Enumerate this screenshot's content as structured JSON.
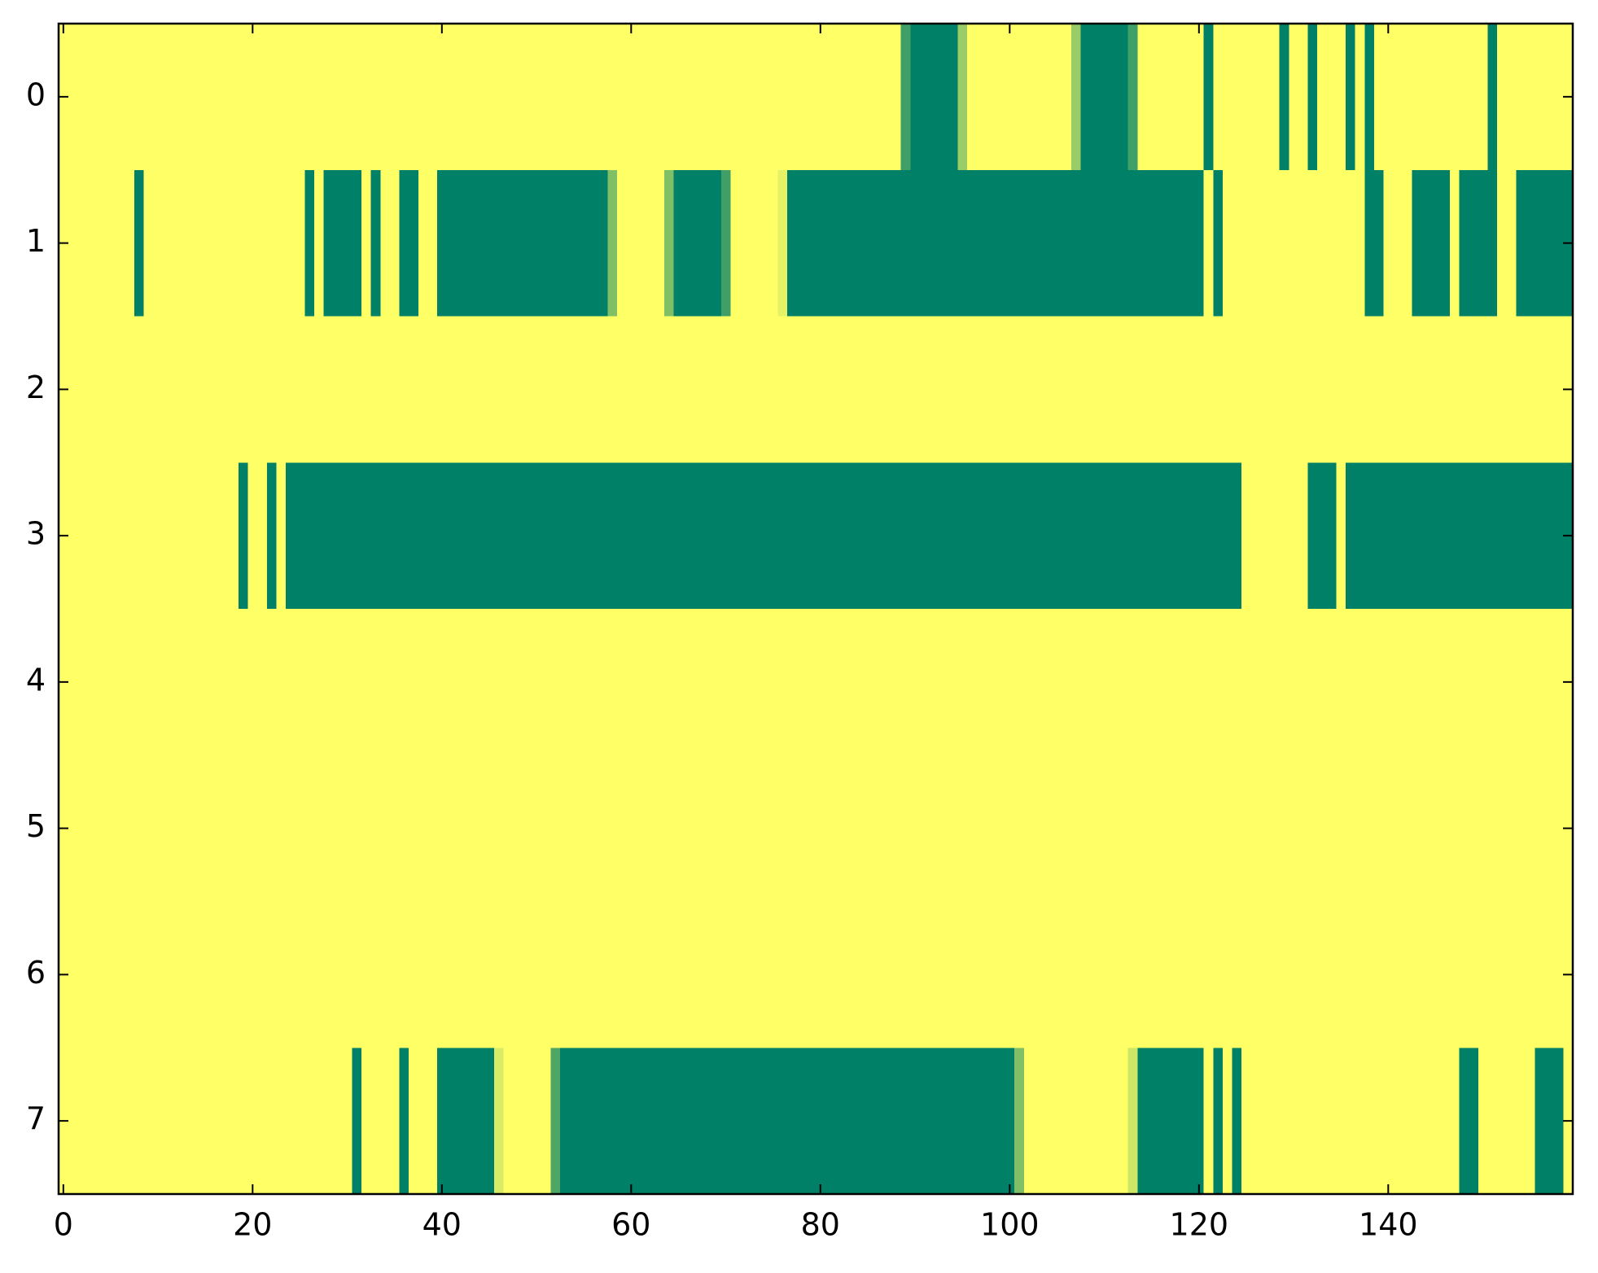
{
  "chart_data": {
    "type": "heatmap",
    "colormap": "summer",
    "clim": [
      0,
      1
    ],
    "xlim": [
      -0.5,
      159.5
    ],
    "ylim": [
      7.5,
      -0.5
    ],
    "xticks": [
      0,
      20,
      40,
      60,
      80,
      100,
      120,
      140
    ],
    "yticks": [
      0,
      1,
      2,
      3,
      4,
      5,
      6,
      7
    ],
    "z": [
      [
        1,
        1,
        1,
        1,
        1,
        1,
        1,
        1,
        1,
        1,
        1,
        1,
        1,
        1,
        1,
        1,
        1,
        1,
        1,
        1,
        1,
        1,
        1,
        1,
        1,
        1,
        1,
        1,
        1,
        1,
        1,
        1,
        1,
        1,
        1,
        1,
        1,
        1,
        1,
        1,
        1,
        1,
        1,
        1,
        1,
        1,
        1,
        1,
        1,
        1,
        1,
        1,
        1,
        1,
        1,
        1,
        1,
        1,
        1,
        1,
        1,
        1,
        1,
        1,
        1,
        1,
        1,
        1,
        1,
        1,
        1,
        1,
        1,
        1,
        1,
        1,
        1,
        1,
        1,
        1,
        1,
        1,
        1,
        1,
        1,
        1,
        1,
        1,
        1,
        0.25,
        0,
        0,
        0,
        0,
        0,
        0.6,
        1,
        1,
        1,
        1,
        1,
        1,
        1,
        1,
        1,
        1,
        1,
        0.6,
        0,
        0,
        0,
        0,
        0,
        0.25,
        1,
        1,
        1,
        1,
        1,
        1,
        1,
        0,
        1,
        1,
        1,
        1,
        1,
        1,
        1,
        0,
        1,
        1,
        0,
        1,
        1,
        1,
        0,
        1,
        0,
        1,
        1,
        1,
        1,
        1,
        1,
        1,
        1,
        1,
        1,
        1,
        1,
        0,
        1,
        1,
        1,
        1,
        1,
        1,
        1,
        1
      ],
      [
        1,
        1,
        1,
        1,
        1,
        1,
        1,
        1,
        0,
        1,
        1,
        1,
        1,
        1,
        1,
        1,
        1,
        1,
        1,
        1,
        1,
        1,
        1,
        1,
        1,
        1,
        0,
        1,
        0,
        0,
        0,
        0,
        1,
        0,
        1,
        1,
        0,
        0,
        1,
        1,
        0,
        0,
        0,
        0,
        0,
        0,
        0,
        0,
        0,
        0,
        0,
        0,
        0,
        0,
        0,
        0,
        0,
        0,
        0.5,
        1,
        1,
        1,
        1,
        1,
        0.5,
        0,
        0,
        0,
        0,
        0,
        0.25,
        1,
        1,
        1,
        1,
        1,
        0.9,
        0,
        0,
        0,
        0,
        0,
        0,
        0,
        0,
        0,
        0,
        0,
        0,
        0,
        0,
        0,
        0,
        0,
        0,
        0,
        0,
        0,
        0,
        0,
        0,
        0,
        0,
        0,
        0,
        0,
        0,
        0,
        0,
        0,
        0,
        0,
        0,
        0,
        0,
        0,
        0,
        0,
        0,
        0,
        0,
        1,
        0,
        1,
        1,
        1,
        1,
        1,
        1,
        1,
        1,
        1,
        1,
        1,
        1,
        1,
        1,
        1,
        0,
        0,
        1,
        1,
        1,
        0,
        0,
        0,
        0,
        1,
        0,
        0,
        0,
        0,
        1,
        1,
        0,
        0,
        0,
        0,
        0,
        0
      ],
      [
        1,
        1,
        1,
        1,
        1,
        1,
        1,
        1,
        1,
        1,
        1,
        1,
        1,
        1,
        1,
        1,
        1,
        1,
        1,
        1,
        1,
        1,
        1,
        1,
        1,
        1,
        1,
        1,
        1,
        1,
        1,
        1,
        1,
        1,
        1,
        1,
        1,
        1,
        1,
        1,
        1,
        1,
        1,
        1,
        1,
        1,
        1,
        1,
        1,
        1,
        1,
        1,
        1,
        1,
        1,
        1,
        1,
        1,
        1,
        1,
        1,
        1,
        1,
        1,
        1,
        1,
        1,
        1,
        1,
        1,
        1,
        1,
        1,
        1,
        1,
        1,
        1,
        1,
        1,
        1,
        1,
        1,
        1,
        1,
        1,
        1,
        1,
        1,
        1,
        1,
        1,
        1,
        1,
        1,
        1,
        1,
        1,
        1,
        1,
        1,
        1,
        1,
        1,
        1,
        1,
        1,
        1,
        1,
        1,
        1,
        1,
        1,
        1,
        1,
        1,
        1,
        1,
        1,
        1,
        1,
        1,
        1,
        1,
        1,
        1,
        1,
        1,
        1,
        1,
        1,
        1,
        1,
        1,
        1,
        1,
        1,
        1,
        1,
        1,
        1,
        1,
        1,
        1,
        1,
        1,
        1,
        1,
        1,
        1,
        1,
        1,
        1,
        1,
        1,
        1,
        1,
        1,
        1,
        1,
        1
      ],
      [
        1,
        1,
        1,
        1,
        1,
        1,
        1,
        1,
        1,
        1,
        1,
        1,
        1,
        1,
        1,
        1,
        1,
        1,
        1,
        0,
        1,
        1,
        0,
        1,
        0,
        0,
        0,
        0,
        0,
        0,
        0,
        0,
        0,
        0,
        0,
        0,
        0,
        0,
        0,
        0,
        0,
        0,
        0,
        0,
        0,
        0,
        0,
        0,
        0,
        0,
        0,
        0,
        0,
        0,
        0,
        0,
        0,
        0,
        0,
        0,
        0,
        0,
        0,
        0,
        0,
        0,
        0,
        0,
        0,
        0,
        0,
        0,
        0,
        0,
        0,
        0,
        0,
        0,
        0,
        0,
        0,
        0,
        0,
        0,
        0,
        0,
        0,
        0,
        0,
        0,
        0,
        0,
        0,
        0,
        0,
        0,
        0,
        0,
        0,
        0,
        0,
        0,
        0,
        0,
        0,
        0,
        0,
        0,
        0,
        0,
        0,
        0,
        0,
        0,
        0,
        0,
        0,
        0,
        0,
        0,
        0,
        0,
        0,
        0,
        0,
        1,
        1,
        1,
        1,
        1,
        1,
        1,
        0,
        0,
        0,
        1,
        0,
        0,
        0,
        0,
        0,
        0,
        0,
        0,
        0,
        0,
        0,
        0,
        0,
        0,
        0,
        0,
        0,
        0,
        0,
        0,
        0,
        0,
        0,
        0
      ],
      [
        1,
        1,
        1,
        1,
        1,
        1,
        1,
        1,
        1,
        1,
        1,
        1,
        1,
        1,
        1,
        1,
        1,
        1,
        1,
        1,
        1,
        1,
        1,
        1,
        1,
        1,
        1,
        1,
        1,
        1,
        1,
        1,
        1,
        1,
        1,
        1,
        1,
        1,
        1,
        1,
        1,
        1,
        1,
        1,
        1,
        1,
        1,
        1,
        1,
        1,
        1,
        1,
        1,
        1,
        1,
        1,
        1,
        1,
        1,
        1,
        1,
        1,
        1,
        1,
        1,
        1,
        1,
        1,
        1,
        1,
        1,
        1,
        1,
        1,
        1,
        1,
        1,
        1,
        1,
        1,
        1,
        1,
        1,
        1,
        1,
        1,
        1,
        1,
        1,
        1,
        1,
        1,
        1,
        1,
        1,
        1,
        1,
        1,
        1,
        1,
        1,
        1,
        1,
        1,
        1,
        1,
        1,
        1,
        1,
        1,
        1,
        1,
        1,
        1,
        1,
        1,
        1,
        1,
        1,
        1,
        1,
        1,
        1,
        1,
        1,
        1,
        1,
        1,
        1,
        1,
        1,
        1,
        1,
        1,
        1,
        1,
        1,
        1,
        1,
        1,
        1,
        1,
        1,
        1,
        1,
        1,
        1,
        1,
        1,
        1,
        1,
        1,
        1,
        1,
        1,
        1,
        1,
        1,
        1,
        1
      ],
      [
        1,
        1,
        1,
        1,
        1,
        1,
        1,
        1,
        1,
        1,
        1,
        1,
        1,
        1,
        1,
        1,
        1,
        1,
        1,
        1,
        1,
        1,
        1,
        1,
        1,
        1,
        1,
        1,
        1,
        1,
        1,
        1,
        1,
        1,
        1,
        1,
        1,
        1,
        1,
        1,
        1,
        1,
        1,
        1,
        1,
        1,
        1,
        1,
        1,
        1,
        1,
        1,
        1,
        1,
        1,
        1,
        1,
        1,
        1,
        1,
        1,
        1,
        1,
        1,
        1,
        1,
        1,
        1,
        1,
        1,
        1,
        1,
        1,
        1,
        1,
        1,
        1,
        1,
        1,
        1,
        1,
        1,
        1,
        1,
        1,
        1,
        1,
        1,
        1,
        1,
        1,
        1,
        1,
        1,
        1,
        1,
        1,
        1,
        1,
        1,
        1,
        1,
        1,
        1,
        1,
        1,
        1,
        1,
        1,
        1,
        1,
        1,
        1,
        1,
        1,
        1,
        1,
        1,
        1,
        1,
        1,
        1,
        1,
        1,
        1,
        1,
        1,
        1,
        1,
        1,
        1,
        1,
        1,
        1,
        1,
        1,
        1,
        1,
        1,
        1,
        1,
        1,
        1,
        1,
        1,
        1,
        1,
        1,
        1,
        1,
        1,
        1,
        1,
        1,
        1,
        1,
        1,
        1,
        1,
        1
      ],
      [
        1,
        1,
        1,
        1,
        1,
        1,
        1,
        1,
        1,
        1,
        1,
        1,
        1,
        1,
        1,
        1,
        1,
        1,
        1,
        1,
        1,
        1,
        1,
        1,
        1,
        1,
        1,
        1,
        1,
        1,
        1,
        1,
        1,
        1,
        1,
        1,
        1,
        1,
        1,
        1,
        1,
        1,
        1,
        1,
        1,
        1,
        1,
        1,
        1,
        1,
        1,
        1,
        1,
        1,
        1,
        1,
        1,
        1,
        1,
        1,
        1,
        1,
        1,
        1,
        1,
        1,
        1,
        1,
        1,
        1,
        1,
        1,
        1,
        1,
        1,
        1,
        1,
        1,
        1,
        1,
        1,
        1,
        1,
        1,
        1,
        1,
        1,
        1,
        1,
        1,
        1,
        1,
        1,
        1,
        1,
        1,
        1,
        1,
        1,
        1,
        1,
        1,
        1,
        1,
        1,
        1,
        1,
        1,
        1,
        1,
        1,
        1,
        1,
        1,
        1,
        1,
        1,
        1,
        1,
        1,
        1,
        1,
        1,
        1,
        1,
        1,
        1,
        1,
        1,
        1,
        1,
        1,
        1,
        1,
        1,
        1,
        1,
        1,
        1,
        1,
        1,
        1,
        1,
        1,
        1,
        1,
        1,
        1,
        1,
        1,
        1,
        1,
        1,
        1,
        1,
        1,
        1,
        1,
        1,
        1
      ],
      [
        1,
        1,
        1,
        1,
        1,
        1,
        1,
        1,
        1,
        1,
        1,
        1,
        1,
        1,
        1,
        1,
        1,
        1,
        1,
        1,
        1,
        1,
        1,
        1,
        1,
        1,
        1,
        1,
        1,
        1,
        1,
        0,
        1,
        1,
        1,
        1,
        0,
        1,
        1,
        1,
        0,
        0,
        0,
        0,
        0,
        0,
        0.85,
        1,
        1,
        1,
        1,
        1,
        0.3,
        0,
        0,
        0,
        0,
        0,
        0,
        0,
        0,
        0,
        0,
        0,
        0,
        0,
        0,
        0,
        0,
        0,
        0,
        0,
        0,
        0,
        0,
        0,
        0,
        0,
        0,
        0,
        0,
        0,
        0,
        0,
        0,
        0,
        0,
        0,
        0,
        0,
        0,
        0,
        0,
        0,
        0,
        0,
        0,
        0,
        0,
        0,
        0,
        0.5,
        1,
        1,
        1,
        1,
        1,
        1,
        1,
        1,
        1,
        1,
        1,
        0.8,
        0,
        0,
        0,
        0,
        0,
        0,
        0,
        1,
        0,
        1,
        0,
        1,
        1,
        1,
        1,
        1,
        1,
        1,
        1,
        1,
        1,
        1,
        1,
        1,
        1,
        1,
        1,
        1,
        1,
        1,
        1,
        1,
        1,
        1,
        0,
        0,
        1,
        1,
        1,
        1,
        1,
        1,
        0,
        0,
        0,
        1
      ]
    ]
  }
}
